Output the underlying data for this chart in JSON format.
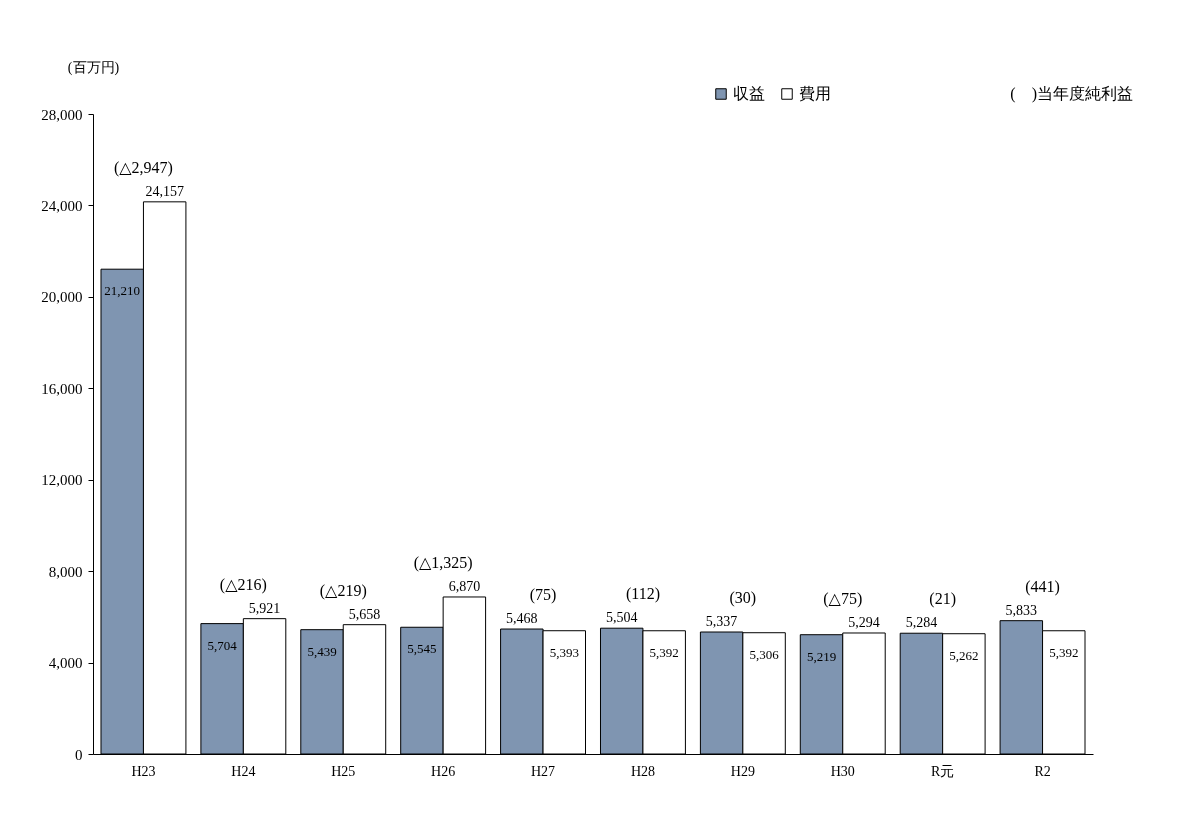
{
  "chart_data": {
    "type": "bar",
    "ylabel": "(百万円)",
    "categories": [
      "H23",
      "H24",
      "H25",
      "H26",
      "H27",
      "H28",
      "H29",
      "H30",
      "R元",
      "R2"
    ],
    "series": [
      {
        "name": "収益",
        "color": "#7f95b1",
        "values": [
          21210,
          5704,
          5439,
          5545,
          5468,
          5504,
          5337,
          5219,
          5284,
          5833
        ],
        "value_labels": [
          "21,210",
          "5,704",
          "5,439",
          "5,545",
          "5,468",
          "5,504",
          "5,337",
          "5,219",
          "5,284",
          "5,833"
        ]
      },
      {
        "name": "費用",
        "color": "#ffffff",
        "values": [
          24157,
          5921,
          5658,
          6870,
          5393,
          5392,
          5306,
          5294,
          5262,
          5392
        ],
        "value_labels": [
          "24,157",
          "5,921",
          "5,658",
          "6,870",
          "5,393",
          "5,392",
          "5,306",
          "5,294",
          "5,262",
          "5,392"
        ]
      }
    ],
    "ylim": [
      0,
      28000
    ],
    "yticks": [
      0,
      {
        "value": 4000,
        "label": "4,000"
      },
      {
        "value": 8000,
        "label": "8,000"
      },
      {
        "value": 12000,
        "label": "12,000"
      },
      {
        "value": 16000,
        "label": "16,000"
      },
      {
        "value": 20000,
        "label": "20,000"
      },
      {
        "value": 24000,
        "label": "24,000"
      },
      {
        "value": 28000,
        "label": "28,000"
      }
    ],
    "grid": false,
    "legend": "top right",
    "annotations": [
      "(　)当年度純利益",
      {
        "text": "(△2,947)",
        "x": "H23",
        "y": 24157
      },
      {
        "text": "(△216)",
        "x": "H24",
        "y": 5921
      },
      {
        "text": "(△219)",
        "x": "H25",
        "y": 5658
      },
      {
        "text": "(△1,325)",
        "x": "H26",
        "y": 6870
      },
      {
        "text": "(75)",
        "x": "H27",
        "y": 5468
      },
      {
        "text": "(112)",
        "x": "H28",
        "y": 5504
      },
      {
        "text": "(30)",
        "x": "H29",
        "y": 5337
      },
      {
        "text": "(△75)",
        "x": "H30",
        "y": 5294
      },
      {
        "text": "(21)",
        "x": "R元",
        "y": 5284
      },
      {
        "text": "(441)",
        "x": "R2",
        "y": 5833
      }
    ]
  }
}
